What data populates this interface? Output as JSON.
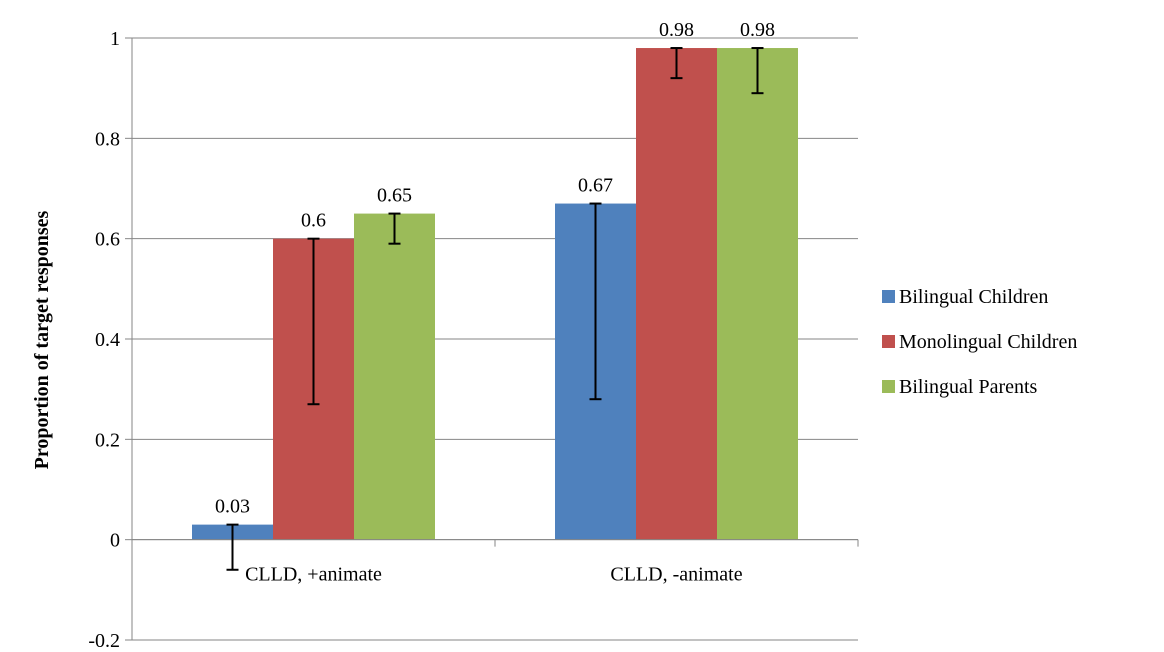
{
  "chart_data": {
    "type": "bar",
    "title": "",
    "xlabel": "",
    "ylabel": "Proportion of target responses",
    "ylim": [
      -0.2,
      1
    ],
    "yticks": [
      "-0.2",
      "0",
      "0.2",
      "0.4",
      "0.6",
      "0.8",
      "1"
    ],
    "grid": true,
    "legend_position": "right",
    "categories": [
      "CLLD, +animate",
      "CLLD, -animate"
    ],
    "series": [
      {
        "name": "Bilingual Children",
        "color": "#4f81bd",
        "values": [
          0.03,
          0.67
        ],
        "labels": [
          "0.03",
          "0.67"
        ],
        "error_low": [
          -0.06,
          0.28
        ],
        "error_high": [
          0.03,
          0.67
        ]
      },
      {
        "name": "Monolingual Children",
        "color": "#c0504d",
        "values": [
          0.6,
          0.98
        ],
        "labels": [
          "0.6",
          "0.98"
        ],
        "error_low": [
          0.27,
          0.92
        ],
        "error_high": [
          0.6,
          0.98
        ]
      },
      {
        "name": "Bilingual Parents",
        "color": "#9bbb59",
        "values": [
          0.65,
          0.98
        ],
        "labels": [
          "0.65",
          "0.98"
        ],
        "error_low": [
          0.59,
          0.89
        ],
        "error_high": [
          0.65,
          0.98
        ]
      }
    ]
  }
}
